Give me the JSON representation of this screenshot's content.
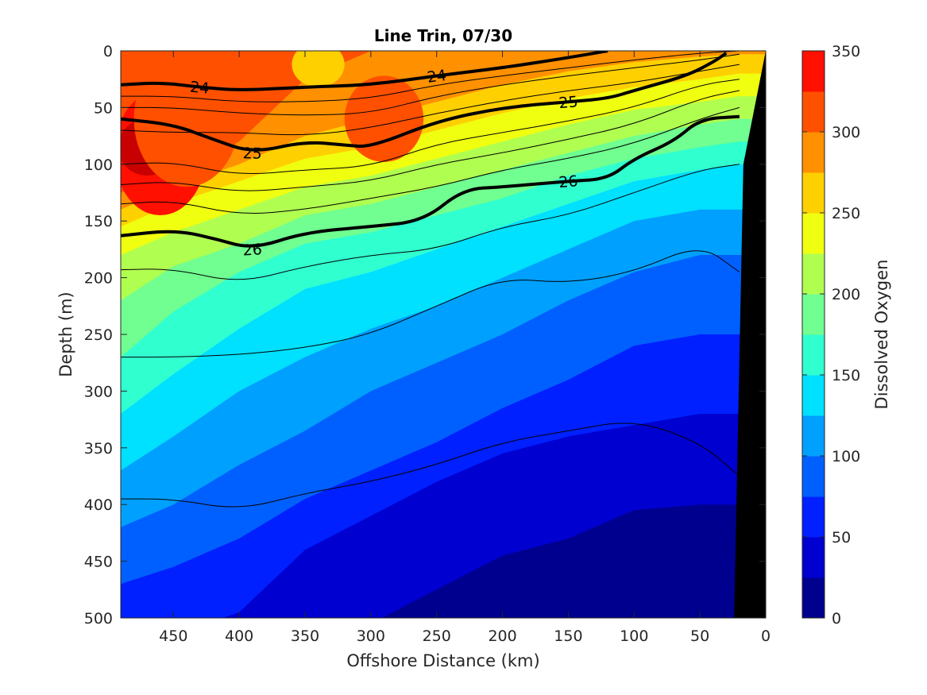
{
  "chart_data": {
    "type": "heatmap",
    "title": "Line Trin, 07/30",
    "xlabel": "Offshore Distance (km)",
    "ylabel": "Depth (m)",
    "colorbar_label": "Dissolved Oxygen",
    "xlim": [
      490,
      0
    ],
    "ylim": [
      0,
      500
    ],
    "x_ticks": [
      "450",
      "400",
      "350",
      "300",
      "250",
      "200",
      "150",
      "100",
      "50",
      "0"
    ],
    "y_ticks": [
      "0",
      "50",
      "100",
      "150",
      "200",
      "250",
      "300",
      "350",
      "400",
      "450",
      "500"
    ],
    "colorbar_ticks": [
      "350",
      "300",
      "250",
      "200",
      "150",
      "100",
      "50",
      "0"
    ],
    "levels": [
      0,
      25,
      50,
      75,
      100,
      125,
      150,
      175,
      200,
      225,
      250,
      275,
      300,
      325,
      350
    ],
    "level_colors": [
      "#00008f",
      "#0000d0",
      "#0020ff",
      "#0060ff",
      "#00a0ff",
      "#00e0ff",
      "#30ffd0",
      "#70ff90",
      "#b0ff50",
      "#f0ff10",
      "#ffd000",
      "#ff9000",
      "#ff5000",
      "#ff1000",
      "#c80000"
    ],
    "x_profile": [
      490,
      450,
      400,
      350,
      300,
      250,
      200,
      150,
      100,
      50,
      20
    ],
    "oxygen_isoline_depths": [
      {
        "level": 25,
        "depths": [
          560,
          560,
          560,
          545,
          505,
          475,
          445,
          430,
          405,
          400,
          400
        ]
      },
      {
        "level": 50,
        "depths": [
          520,
          515,
          495,
          440,
          410,
          380,
          355,
          340,
          330,
          320,
          320
        ]
      },
      {
        "level": 75,
        "depths": [
          470,
          455,
          430,
          395,
          370,
          345,
          315,
          290,
          260,
          250,
          250
        ]
      },
      {
        "level": 100,
        "depths": [
          420,
          400,
          365,
          335,
          300,
          275,
          250,
          220,
          195,
          180,
          180
        ]
      },
      {
        "level": 125,
        "depths": [
          370,
          340,
          300,
          270,
          245,
          225,
          200,
          175,
          150,
          140,
          140
        ]
      },
      {
        "level": 150,
        "depths": [
          320,
          285,
          245,
          210,
          195,
          175,
          155,
          135,
          115,
          105,
          100
        ]
      },
      {
        "level": 175,
        "depths": [
          270,
          230,
          195,
          170,
          160,
          145,
          130,
          110,
          95,
          85,
          80
        ]
      },
      {
        "level": 200,
        "depths": [
          220,
          190,
          170,
          145,
          135,
          120,
          105,
          90,
          75,
          65,
          60
        ]
      },
      {
        "level": 225,
        "depths": [
          180,
          160,
          140,
          120,
          110,
          95,
          80,
          65,
          52,
          45,
          40
        ]
      },
      {
        "level": 250,
        "depths": [
          155,
          135,
          115,
          95,
          85,
          70,
          55,
          42,
          32,
          25,
          20
        ]
      },
      {
        "level": 275,
        "depths": [
          140,
          120,
          100,
          75,
          60,
          45,
          30,
          18,
          10,
          5,
          3
        ]
      },
      {
        "level": 300,
        "depths": [
          125,
          110,
          80,
          25,
          0,
          0,
          0,
          0,
          0,
          0,
          0
        ]
      }
    ],
    "maxima": [
      {
        "x": 460,
        "y": 90,
        "rx": 35,
        "ry": 55,
        "level": 325
      },
      {
        "x": 470,
        "y": 85,
        "rx": 22,
        "ry": 25,
        "level": 350
      },
      {
        "x": 290,
        "y": 60,
        "rx": 30,
        "ry": 38,
        "level": 300
      },
      {
        "x": 440,
        "y": 60,
        "rx": 40,
        "ry": 60,
        "level": 300
      },
      {
        "x": 340,
        "y": 12,
        "rx": 20,
        "ry": 20,
        "level": 250
      }
    ],
    "density_contours": [
      {
        "label": "24",
        "bold": true,
        "x": [
          490,
          460,
          430,
          400,
          350,
          300,
          250,
          200,
          150,
          120
        ],
        "depth": [
          30,
          28,
          32,
          35,
          32,
          30,
          22,
          15,
          6,
          0
        ]
      },
      {
        "label": "25",
        "bold": true,
        "x": [
          490,
          450,
          420,
          390,
          350,
          320,
          300,
          250,
          200,
          150,
          120,
          100,
          60,
          40,
          30
        ],
        "depth": [
          60,
          65,
          78,
          90,
          80,
          83,
          85,
          62,
          50,
          45,
          42,
          35,
          22,
          10,
          2
        ]
      },
      {
        "label": "26",
        "bold": true,
        "x": [
          490,
          450,
          420,
          390,
          350,
          300,
          260,
          230,
          200,
          150,
          120,
          100,
          70,
          50,
          20
        ],
        "depth": [
          163,
          158,
          165,
          175,
          160,
          155,
          150,
          122,
          120,
          115,
          113,
          95,
          80,
          60,
          58
        ]
      },
      {
        "label": "",
        "bold": false,
        "x": [
          490,
          450,
          400,
          350,
          300,
          250,
          200,
          150,
          100,
          50,
          20
        ],
        "depth": [
          40,
          40,
          45,
          45,
          42,
          30,
          22,
          15,
          8,
          2,
          0
        ]
      },
      {
        "label": "",
        "bold": false,
        "x": [
          490,
          450,
          400,
          350,
          300,
          250,
          200,
          150,
          100,
          50,
          20
        ],
        "depth": [
          50,
          50,
          55,
          57,
          55,
          40,
          30,
          22,
          15,
          8,
          3
        ]
      },
      {
        "label": "",
        "bold": false,
        "x": [
          490,
          450,
          400,
          350,
          300,
          250,
          200,
          150,
          100,
          50,
          20
        ],
        "depth": [
          70,
          72,
          72,
          75,
          68,
          55,
          44,
          35,
          28,
          18,
          12
        ]
      },
      {
        "label": "",
        "bold": false,
        "x": [
          490,
          450,
          400,
          350,
          300,
          250,
          200,
          150,
          100,
          50,
          20
        ],
        "depth": [
          100,
          98,
          110,
          105,
          102,
          82,
          72,
          62,
          50,
          30,
          25
        ]
      },
      {
        "label": "",
        "bold": false,
        "x": [
          490,
          450,
          400,
          350,
          300,
          250,
          200,
          150,
          100,
          50,
          20
        ],
        "depth": [
          118,
          115,
          125,
          120,
          115,
          100,
          90,
          78,
          65,
          42,
          35
        ]
      },
      {
        "label": "",
        "bold": false,
        "x": [
          490,
          450,
          400,
          350,
          300,
          250,
          200,
          150,
          100,
          50,
          20
        ],
        "depth": [
          135,
          132,
          145,
          140,
          130,
          120,
          105,
          95,
          82,
          60,
          50
        ]
      },
      {
        "label": "",
        "bold": false,
        "x": [
          490,
          450,
          400,
          350,
          300,
          250,
          200,
          150,
          100,
          50,
          20
        ],
        "depth": [
          193,
          192,
          205,
          190,
          180,
          175,
          155,
          145,
          125,
          105,
          100
        ]
      },
      {
        "label": "",
        "bold": false,
        "x": [
          490,
          450,
          400,
          350,
          300,
          250,
          200,
          150,
          100,
          50,
          20
        ],
        "depth": [
          270,
          270,
          268,
          262,
          250,
          225,
          200,
          205,
          195,
          170,
          195
        ]
      },
      {
        "label": "",
        "bold": false,
        "x": [
          490,
          450,
          400,
          350,
          300,
          250,
          200,
          150,
          100,
          50,
          20
        ],
        "depth": [
          395,
          395,
          405,
          390,
          380,
          365,
          345,
          335,
          325,
          345,
          375
        ]
      }
    ],
    "bathymetry_x": [
      24,
      0,
      0,
      17
    ],
    "bathymetry_depth": [
      500,
      500,
      0,
      100
    ]
  }
}
